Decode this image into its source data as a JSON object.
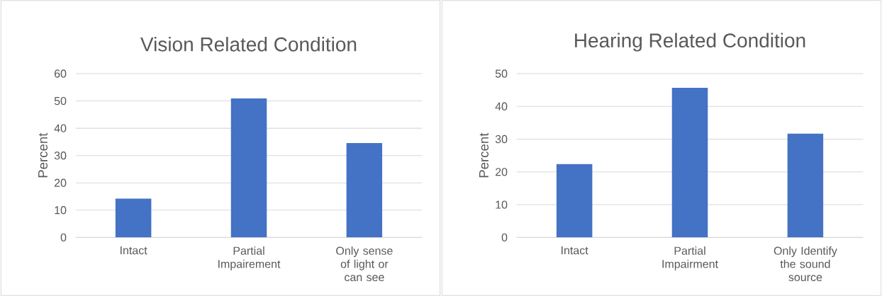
{
  "chart_data": [
    {
      "type": "bar",
      "title": "Vision Related Condition",
      "ylabel": "Percent",
      "categories": [
        "Intact",
        "Partial Impairement",
        "Only sense of light or can see"
      ],
      "values": [
        14.2,
        50.9,
        34.6
      ],
      "color": "#4472c4",
      "ylim": [
        0,
        60
      ],
      "yticks": [
        0,
        10,
        20,
        30,
        40,
        50,
        60
      ],
      "grid": "y"
    },
    {
      "type": "bar",
      "title": "Hearing Related Condition",
      "ylabel": "Percent",
      "categories": [
        "Intact",
        "Partial Impairment",
        "Only Identify the sound source"
      ],
      "values": [
        22.4,
        45.7,
        31.7
      ],
      "color": "#4472c4",
      "ylim": [
        0,
        50
      ],
      "yticks": [
        0,
        10,
        20,
        30,
        40,
        50
      ],
      "grid": "y"
    }
  ]
}
